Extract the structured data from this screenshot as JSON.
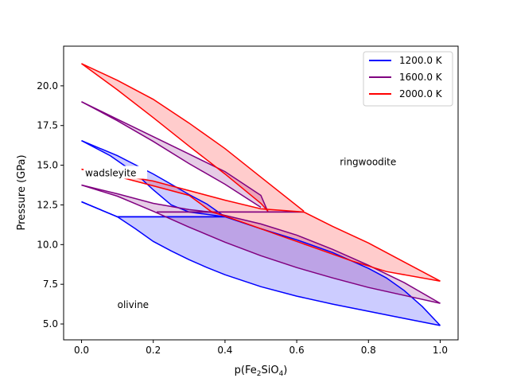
{
  "chart_data": {
    "type": "area",
    "title": "",
    "xlabel_base": "p(Fe",
    "xlabel_sub1": "2",
    "xlabel_mid": "SiO",
    "xlabel_sub2": "4",
    "xlabel_end": ")",
    "ylabel": "Pressure (GPa)",
    "xlim": [
      -0.05,
      1.05
    ],
    "ylim": [
      4.0,
      22.5
    ],
    "xticks": [
      0.0,
      0.2,
      0.4,
      0.6,
      0.8,
      1.0
    ],
    "xtick_labels": [
      "0.0",
      "0.2",
      "0.4",
      "0.6",
      "0.8",
      "1.0"
    ],
    "yticks": [
      5.0,
      7.5,
      10.0,
      12.5,
      15.0,
      17.5,
      20.0
    ],
    "ytick_labels": [
      "5.0",
      "7.5",
      "10.0",
      "12.5",
      "15.0",
      "17.5",
      "20.0"
    ],
    "grid": false,
    "legend_position": "top-right",
    "annotations": [
      {
        "text": "olivine",
        "x": 0.1,
        "y": 6.1
      },
      {
        "text": "wadsleyite",
        "x": 0.01,
        "y": 14.4
      },
      {
        "text": "ringwoodite",
        "x": 0.72,
        "y": 15.1
      }
    ],
    "series": [
      {
        "name": "1200.0 K",
        "color": "#0000ff",
        "fill": "rgba(0,0,255,0.2)",
        "regions": [
          {
            "upper": [
              [
                0.0,
                12.7
              ],
              [
                0.1,
                11.75
              ],
              [
                0.15,
                11.0
              ],
              [
                0.2,
                10.2
              ],
              [
                0.25,
                9.6
              ],
              [
                0.3,
                9.05
              ],
              [
                0.35,
                8.55
              ],
              [
                0.4,
                8.1
              ],
              [
                0.5,
                7.35
              ],
              [
                0.6,
                6.75
              ],
              [
                0.7,
                6.25
              ],
              [
                0.8,
                5.8
              ],
              [
                0.9,
                5.35
              ],
              [
                1.0,
                4.9
              ]
            ],
            "lower": [
              [
                0.0,
                12.7
              ],
              [
                0.1,
                11.75
              ],
              [
                0.4,
                11.75
              ],
              [
                0.5,
                11.0
              ],
              [
                0.6,
                10.3
              ],
              [
                0.7,
                9.5
              ],
              [
                0.8,
                8.5
              ],
              [
                0.85,
                7.9
              ],
              [
                0.9,
                7.1
              ],
              [
                0.95,
                6.1
              ],
              [
                1.0,
                4.9
              ]
            ]
          },
          {
            "upper": [
              [
                0.0,
                16.55
              ],
              [
                0.08,
                15.6
              ],
              [
                0.15,
                14.5
              ],
              [
                0.2,
                13.45
              ],
              [
                0.25,
                12.5
              ],
              [
                0.3,
                12.05
              ],
              [
                0.4,
                11.75
              ]
            ],
            "lower": [
              [
                0.0,
                16.55
              ],
              [
                0.1,
                15.6
              ],
              [
                0.2,
                14.45
              ],
              [
                0.25,
                13.8
              ],
              [
                0.3,
                13.15
              ],
              [
                0.35,
                12.55
              ],
              [
                0.4,
                11.75
              ]
            ]
          },
          {
            "upper": [
              [
                0.1,
                11.75
              ],
              [
                0.4,
                11.75
              ]
            ],
            "lower": [
              [
                0.1,
                11.75
              ],
              [
                0.4,
                11.75
              ]
            ]
          }
        ]
      },
      {
        "name": "1600.0 K",
        "color": "#800080",
        "fill": "rgba(128,0,128,0.2)",
        "regions": [
          {
            "upper": [
              [
                0.0,
                13.75
              ],
              [
                0.1,
                13.05
              ],
              [
                0.2,
                12.1
              ],
              [
                0.3,
                11.1
              ],
              [
                0.4,
                10.15
              ],
              [
                0.5,
                9.3
              ],
              [
                0.6,
                8.55
              ],
              [
                0.7,
                7.9
              ],
              [
                0.8,
                7.3
              ],
              [
                0.9,
                6.8
              ],
              [
                1.0,
                6.3
              ]
            ],
            "lower": [
              [
                0.0,
                13.75
              ],
              [
                0.1,
                13.2
              ],
              [
                0.2,
                12.6
              ],
              [
                0.3,
                12.2
              ],
              [
                0.36,
                12.05
              ],
              [
                0.5,
                11.3
              ],
              [
                0.6,
                10.6
              ],
              [
                0.7,
                9.7
              ],
              [
                0.8,
                8.7
              ],
              [
                0.9,
                7.6
              ],
              [
                1.0,
                6.3
              ]
            ]
          },
          {
            "upper": [
              [
                0.0,
                19.0
              ],
              [
                0.1,
                17.8
              ],
              [
                0.2,
                16.5
              ],
              [
                0.3,
                15.1
              ],
              [
                0.4,
                13.8
              ],
              [
                0.5,
                12.35
              ]
            ],
            "lower": [
              [
                0.0,
                19.0
              ],
              [
                0.1,
                17.9
              ],
              [
                0.2,
                16.8
              ],
              [
                0.3,
                15.7
              ],
              [
                0.4,
                14.6
              ],
              [
                0.5,
                13.1
              ],
              [
                0.52,
                12.05
              ]
            ]
          },
          {
            "upper": [
              [
                0.21,
                12.05
              ],
              [
                0.62,
                12.05
              ]
            ],
            "lower": [
              [
                0.21,
                12.05
              ],
              [
                0.62,
                12.05
              ]
            ]
          }
        ]
      },
      {
        "name": "2000.0 K",
        "color": "#ff0000",
        "fill": "rgba(255,0,0,0.2)",
        "regions": [
          {
            "upper": [
              [
                0.0,
                14.75
              ],
              [
                0.1,
                14.3
              ],
              [
                0.2,
                13.7
              ],
              [
                0.3,
                13.1
              ],
              [
                0.36,
                12.1
              ],
              [
                0.45,
                11.4
              ],
              [
                0.55,
                10.6
              ],
              [
                0.65,
                9.8
              ],
              [
                0.75,
                9.0
              ],
              [
                0.85,
                8.3
              ],
              [
                1.0,
                7.7
              ]
            ],
            "lower": [
              [
                0.0,
                14.75
              ],
              [
                0.1,
                14.4
              ],
              [
                0.2,
                14.0
              ],
              [
                0.3,
                13.4
              ],
              [
                0.4,
                12.8
              ],
              [
                0.5,
                12.25
              ],
              [
                0.62,
                12.05
              ],
              [
                0.7,
                11.15
              ],
              [
                0.8,
                10.1
              ],
              [
                0.9,
                8.9
              ],
              [
                1.0,
                7.7
              ]
            ]
          },
          {
            "upper": [
              [
                0.0,
                21.4
              ],
              [
                0.1,
                19.75
              ],
              [
                0.2,
                18.0
              ],
              [
                0.3,
                16.2
              ],
              [
                0.4,
                14.45
              ],
              [
                0.5,
                12.6
              ],
              [
                0.52,
                12.1
              ]
            ],
            "lower": [
              [
                0.0,
                21.4
              ],
              [
                0.1,
                20.35
              ],
              [
                0.2,
                19.15
              ],
              [
                0.3,
                17.65
              ],
              [
                0.4,
                16.05
              ],
              [
                0.5,
                14.25
              ],
              [
                0.62,
                12.1
              ]
            ]
          },
          {
            "upper": [
              [
                0.0,
                14.75
              ],
              [
                0.0,
                14.75
              ]
            ],
            "lower": [
              [
                0.0,
                14.75
              ],
              [
                0.0,
                14.75
              ]
            ]
          }
        ]
      }
    ]
  }
}
